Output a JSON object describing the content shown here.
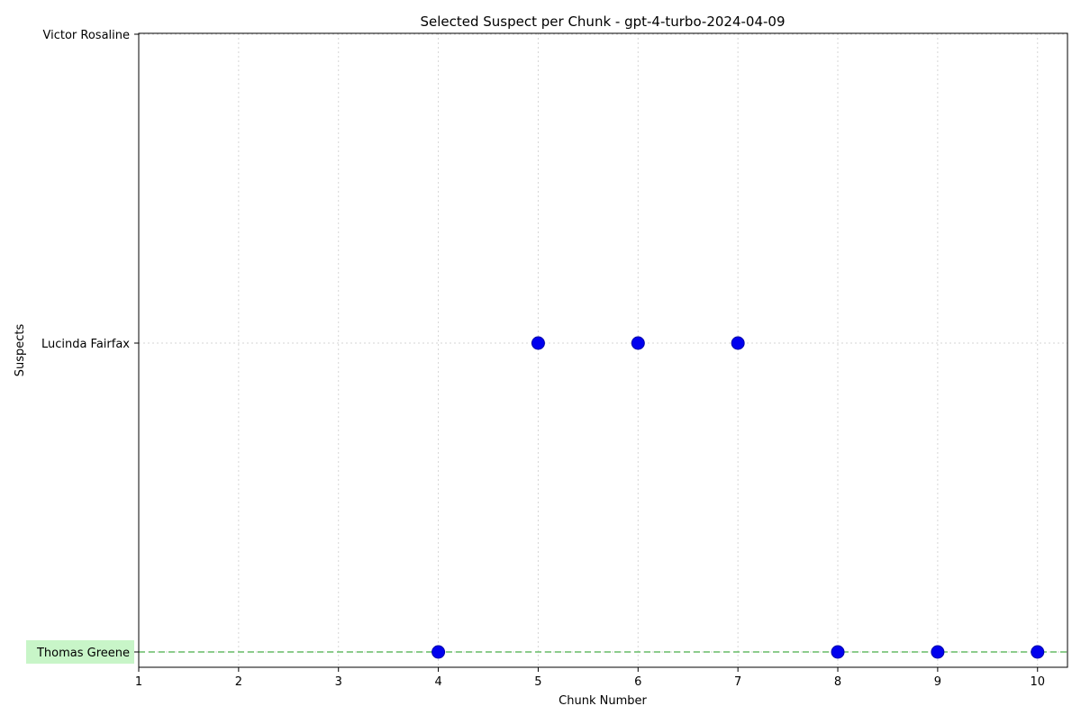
{
  "chart_data": {
    "type": "scatter",
    "title": "Selected Suspect per Chunk - gpt-4-turbo-2024-04-09",
    "xlabel": "Chunk Number",
    "ylabel": "Suspects",
    "xlim": [
      1,
      10.3
    ],
    "x_ticks": [
      1,
      2,
      3,
      4,
      5,
      6,
      7,
      8,
      9,
      10
    ],
    "y_categories": [
      "Thomas Greene",
      "Lucinda Fairfax",
      "Victor Rosaline"
    ],
    "highlighted_category": "Thomas Greene",
    "highlight_color": "#c8f5c8",
    "reference_line": {
      "category": "Thomas Greene",
      "color": "#66bb66",
      "style": "dashed"
    },
    "grid": true,
    "marker_color": "#0000ee",
    "points": [
      {
        "x": 4,
        "y": "Thomas Greene"
      },
      {
        "x": 5,
        "y": "Lucinda Fairfax"
      },
      {
        "x": 6,
        "y": "Lucinda Fairfax"
      },
      {
        "x": 7,
        "y": "Lucinda Fairfax"
      },
      {
        "x": 8,
        "y": "Thomas Greene"
      },
      {
        "x": 9,
        "y": "Thomas Greene"
      },
      {
        "x": 10,
        "y": "Thomas Greene"
      }
    ]
  }
}
